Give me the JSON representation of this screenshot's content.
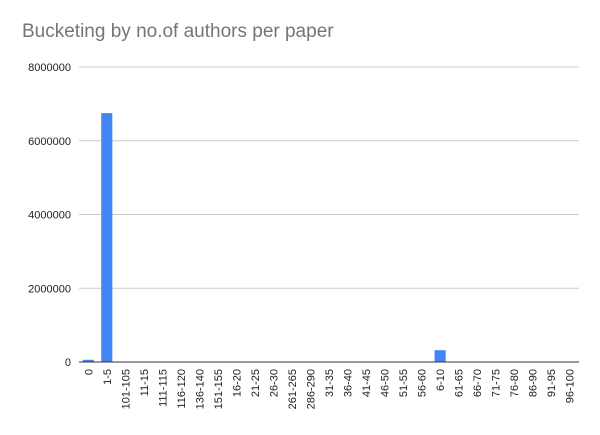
{
  "chart_data": {
    "type": "bar",
    "title": "Bucketing by no.of authors per paper",
    "xlabel": "",
    "ylabel": "",
    "ylim": [
      0,
      8000000
    ],
    "yticks": [
      0,
      2000000,
      4000000,
      6000000,
      8000000
    ],
    "grid": true,
    "legend": "none",
    "colors": {
      "bar": "#4285f4",
      "grid": "#cccccc",
      "axis": "#333333",
      "title": "#757575"
    },
    "categories": [
      "0",
      "1-5",
      "101-105",
      "11-15",
      "111-115",
      "116-120",
      "136-140",
      "151-155",
      "16-20",
      "21-25",
      "26-30",
      "261-265",
      "286-290",
      "31-35",
      "36-40",
      "41-45",
      "46-50",
      "51-55",
      "56-60",
      "6-10",
      "61-65",
      "66-70",
      "71-75",
      "76-80",
      "86-90",
      "91-95",
      "96-100"
    ],
    "values": [
      60000,
      6750000,
      200,
      3000,
      100,
      100,
      50,
      30,
      10000,
      3000,
      2000,
      10,
      10,
      1000,
      700,
      500,
      300,
      200,
      150,
      320000,
      100,
      80,
      60,
      40,
      30,
      20,
      50
    ]
  }
}
